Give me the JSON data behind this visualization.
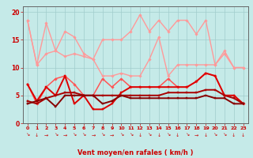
{
  "xlabel": "Vent moyen/en rafales ( km/h )",
  "x": [
    0,
    1,
    2,
    3,
    4,
    5,
    6,
    7,
    8,
    9,
    10,
    11,
    12,
    13,
    14,
    15,
    16,
    17,
    18,
    19,
    20,
    21,
    22,
    23
  ],
  "series": [
    {
      "name": "rafales_top",
      "color": "#FF9999",
      "lw": 1.0,
      "marker": "D",
      "ms": 1.8,
      "values": [
        18.5,
        10.5,
        18.0,
        13.0,
        16.5,
        15.5,
        12.5,
        11.5,
        15.0,
        15.0,
        15.0,
        16.5,
        19.5,
        16.5,
        18.5,
        16.5,
        18.5,
        18.5,
        16.0,
        18.5,
        10.5,
        13.0,
        10.0,
        10.0
      ]
    },
    {
      "name": "rafales_bot",
      "color": "#FF9999",
      "lw": 1.0,
      "marker": "D",
      "ms": 1.8,
      "values": [
        18.5,
        10.5,
        12.5,
        13.0,
        12.0,
        12.5,
        12.0,
        11.5,
        8.5,
        8.5,
        9.0,
        8.5,
        8.5,
        11.5,
        15.5,
        8.5,
        10.5,
        10.5,
        10.5,
        10.5,
        10.5,
        12.5,
        10.0,
        10.0
      ]
    },
    {
      "name": "vent_high",
      "color": "#FF5555",
      "lw": 1.1,
      "marker": "D",
      "ms": 1.8,
      "values": [
        7.0,
        3.5,
        6.5,
        8.0,
        8.5,
        7.0,
        5.0,
        5.0,
        8.0,
        6.5,
        8.0,
        6.5,
        6.5,
        6.5,
        6.5,
        8.0,
        6.5,
        6.5,
        7.5,
        9.0,
        8.5,
        5.0,
        5.0,
        3.5
      ]
    },
    {
      "name": "vent_mid1",
      "color": "#DD0000",
      "lw": 1.4,
      "marker": "s",
      "ms": 1.8,
      "values": [
        7.0,
        4.0,
        6.5,
        5.0,
        8.5,
        3.5,
        5.0,
        2.5,
        2.5,
        3.5,
        5.5,
        6.5,
        6.5,
        6.5,
        6.5,
        6.5,
        6.5,
        6.5,
        7.5,
        9.0,
        8.5,
        5.0,
        5.0,
        3.5
      ]
    },
    {
      "name": "vent_mid2",
      "color": "#AA0000",
      "lw": 1.4,
      "marker": "s",
      "ms": 1.8,
      "values": [
        4.0,
        3.5,
        4.5,
        5.0,
        5.5,
        5.5,
        5.0,
        5.0,
        5.0,
        5.0,
        5.0,
        5.0,
        5.0,
        5.0,
        5.0,
        5.5,
        5.5,
        5.5,
        5.5,
        6.0,
        6.0,
        5.0,
        4.5,
        3.5
      ]
    },
    {
      "name": "vent_low",
      "color": "#880000",
      "lw": 1.4,
      "marker": "s",
      "ms": 1.8,
      "values": [
        3.5,
        4.0,
        4.5,
        3.0,
        5.0,
        5.0,
        5.0,
        5.0,
        3.5,
        4.0,
        5.0,
        4.5,
        4.5,
        4.5,
        4.5,
        4.5,
        4.5,
        4.5,
        4.5,
        5.0,
        4.5,
        4.5,
        3.5,
        3.5
      ]
    }
  ],
  "arrows": [
    "↘",
    "↓",
    "→",
    "↘",
    "→",
    "↘",
    "↘",
    "→",
    "↘",
    "→",
    "↘",
    "↘",
    "↓",
    "↘",
    "↓",
    "↘",
    "↓",
    "↘",
    "→",
    "↓",
    "↘",
    "↘",
    "↓",
    "↓"
  ],
  "ylim": [
    0,
    21
  ],
  "yticks": [
    0,
    5,
    10,
    15,
    20
  ],
  "bg_color": "#C5EAE8",
  "grid_color": "#A0CCCC",
  "label_color": "#CC0000",
  "spine_color": "#666666"
}
